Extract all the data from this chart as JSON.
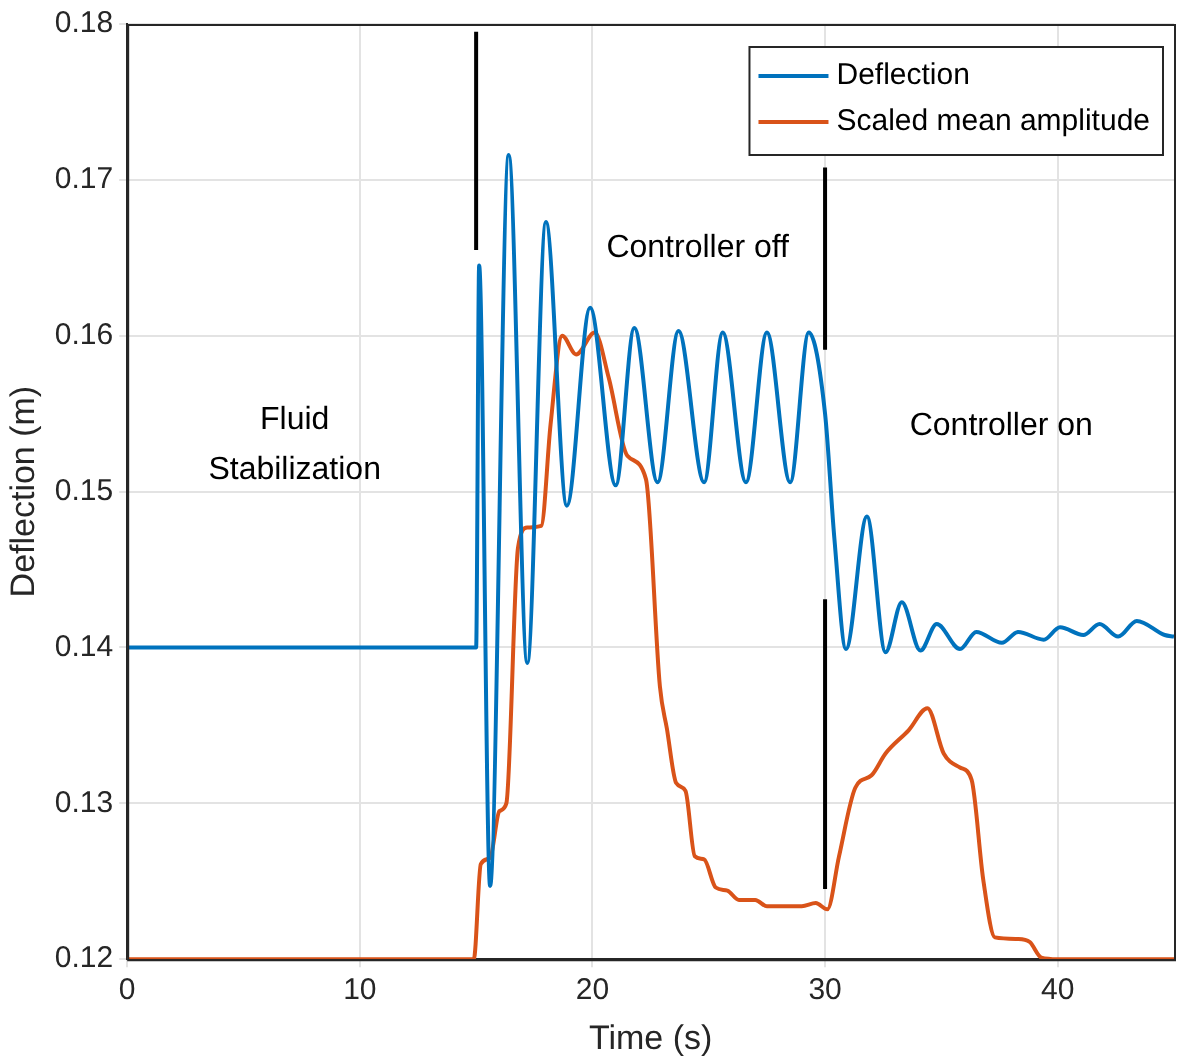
{
  "chart_data": {
    "type": "line",
    "xlabel": "Time (s)",
    "ylabel": "Deflection (m)",
    "xlim": [
      0,
      45
    ],
    "ylim": [
      0.12,
      0.18
    ],
    "xticks": [
      0,
      10,
      20,
      30,
      40
    ],
    "yticks": [
      0.12,
      0.13,
      0.14,
      0.15,
      0.16,
      0.17,
      0.18
    ],
    "grid": true,
    "legend": "top right",
    "marker": "none",
    "line_style": "solid",
    "series": [
      {
        "name": "Deflection",
        "color": "#0072bd",
        "x": [
          0,
          15,
          15.13,
          15.6,
          16.4,
          17.2,
          18.0,
          18.9,
          19.9,
          21.0,
          21.8,
          22.8,
          23.7,
          24.8,
          25.6,
          26.6,
          27.5,
          28.5,
          29.3,
          30.0,
          30.4,
          30.9,
          31.8,
          32.6,
          33.3,
          34.1,
          34.8,
          35.8,
          36.5,
          37.6,
          38.3,
          39.4,
          40.1,
          41.1,
          41.8,
          42.6,
          43.4,
          44.6,
          45
        ],
        "values": [
          0.14,
          0.14,
          0.1645,
          0.1247,
          0.1716,
          0.139,
          0.1673,
          0.1491,
          0.1618,
          0.1504,
          0.1605,
          0.1506,
          0.1603,
          0.1506,
          0.1602,
          0.1506,
          0.1602,
          0.1506,
          0.1602,
          0.155,
          0.147,
          0.1399,
          0.1484,
          0.1397,
          0.1429,
          0.1398,
          0.1415,
          0.1399,
          0.141,
          0.1403,
          0.141,
          0.1405,
          0.1413,
          0.1408,
          0.1415,
          0.1407,
          0.1417,
          0.1408,
          0.1407
        ]
      },
      {
        "name": "Scaled mean amplitude",
        "color": "#d95319",
        "x": [
          0,
          14.9,
          15.2,
          15.6,
          16.0,
          16.3,
          16.8,
          17.2,
          17.8,
          18.2,
          18.7,
          19.3,
          20.1,
          20.7,
          21.5,
          22.3,
          22.9,
          23.2,
          23.6,
          24.0,
          24.4,
          24.8,
          25.3,
          25.8,
          26.3,
          27.0,
          27.5,
          28.3,
          29.0,
          29.6,
          30.1,
          30.6,
          31.3,
          32.0,
          32.6,
          33.6,
          34.4,
          35.1,
          35.8,
          36.3,
          36.8,
          37.3,
          38.3,
          38.8,
          39.3,
          40,
          45
        ],
        "values": [
          0.12,
          0.12,
          0.1261,
          0.1265,
          0.1295,
          0.13,
          0.1464,
          0.1477,
          0.1478,
          0.1543,
          0.16,
          0.1588,
          0.1602,
          0.1573,
          0.1523,
          0.1508,
          0.1375,
          0.1348,
          0.1313,
          0.1308,
          0.1266,
          0.1264,
          0.1246,
          0.1244,
          0.1238,
          0.1238,
          0.1234,
          0.1234,
          0.1234,
          0.1236,
          0.1232,
          0.1266,
          0.131,
          0.1318,
          0.1332,
          0.1347,
          0.1361,
          0.1332,
          0.1323,
          0.1315,
          0.1251,
          0.1214,
          0.1213,
          0.1211,
          0.1201,
          0.12,
          0.12
        ]
      },
      {
        "color": "#000000",
        "x": [
          15,
          15
        ],
        "values": [
          0.1655,
          0.1795
        ]
      },
      {
        "color": "#000000",
        "x": [
          30,
          30
        ],
        "values": [
          0.1591,
          0.1708
        ]
      },
      {
        "color": "#000000",
        "x": [
          30,
          30
        ],
        "values": [
          0.1245,
          0.1431
        ]
      }
    ],
    "annotations": [
      "Fluid Stabilization",
      "Controller off",
      "Controller on"
    ]
  }
}
